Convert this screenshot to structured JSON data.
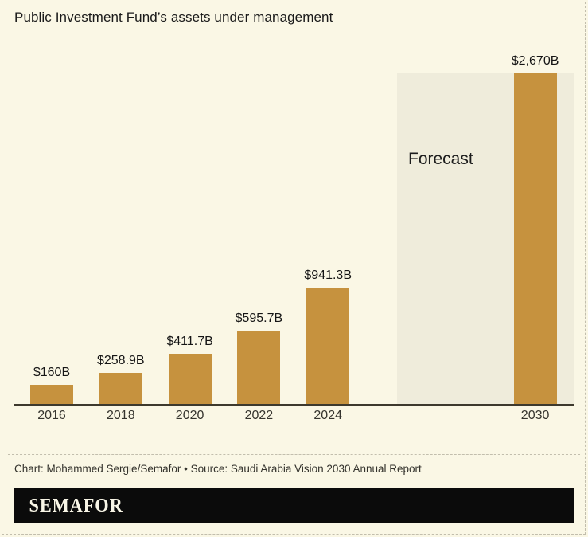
{
  "header": {
    "title": "Public Investment Fund’s assets under management"
  },
  "chart_data": {
    "type": "bar",
    "title": "Public Investment Fund’s assets under management",
    "categories": [
      "2016",
      "2018",
      "2020",
      "2022",
      "2024",
      "2030"
    ],
    "values": [
      160,
      258.9,
      411.7,
      595.7,
      941.3,
      2670
    ],
    "value_labels": [
      "$160B",
      "$258.9B",
      "$411.7B",
      "$595.7B",
      "$941.3B",
      "$2,670B"
    ],
    "unit": "USD billions",
    "xlabel": "",
    "ylabel": "",
    "ylim": [
      0,
      2670
    ],
    "grid": false,
    "legend": "none",
    "annotations": [
      {
        "text": "Forecast",
        "applies_to": "2030",
        "style": "shaded-band"
      }
    ],
    "colors": {
      "bar": "#c6923e",
      "forecast_band": "#efecdb",
      "background": "#faf7e5",
      "axis": "#3d392d"
    }
  },
  "footer": {
    "credit": "Chart: Mohammed Sergie/Semafor • Source: Saudi Arabia Vision 2030 Annual Report",
    "logo": "SEMAFOR"
  }
}
